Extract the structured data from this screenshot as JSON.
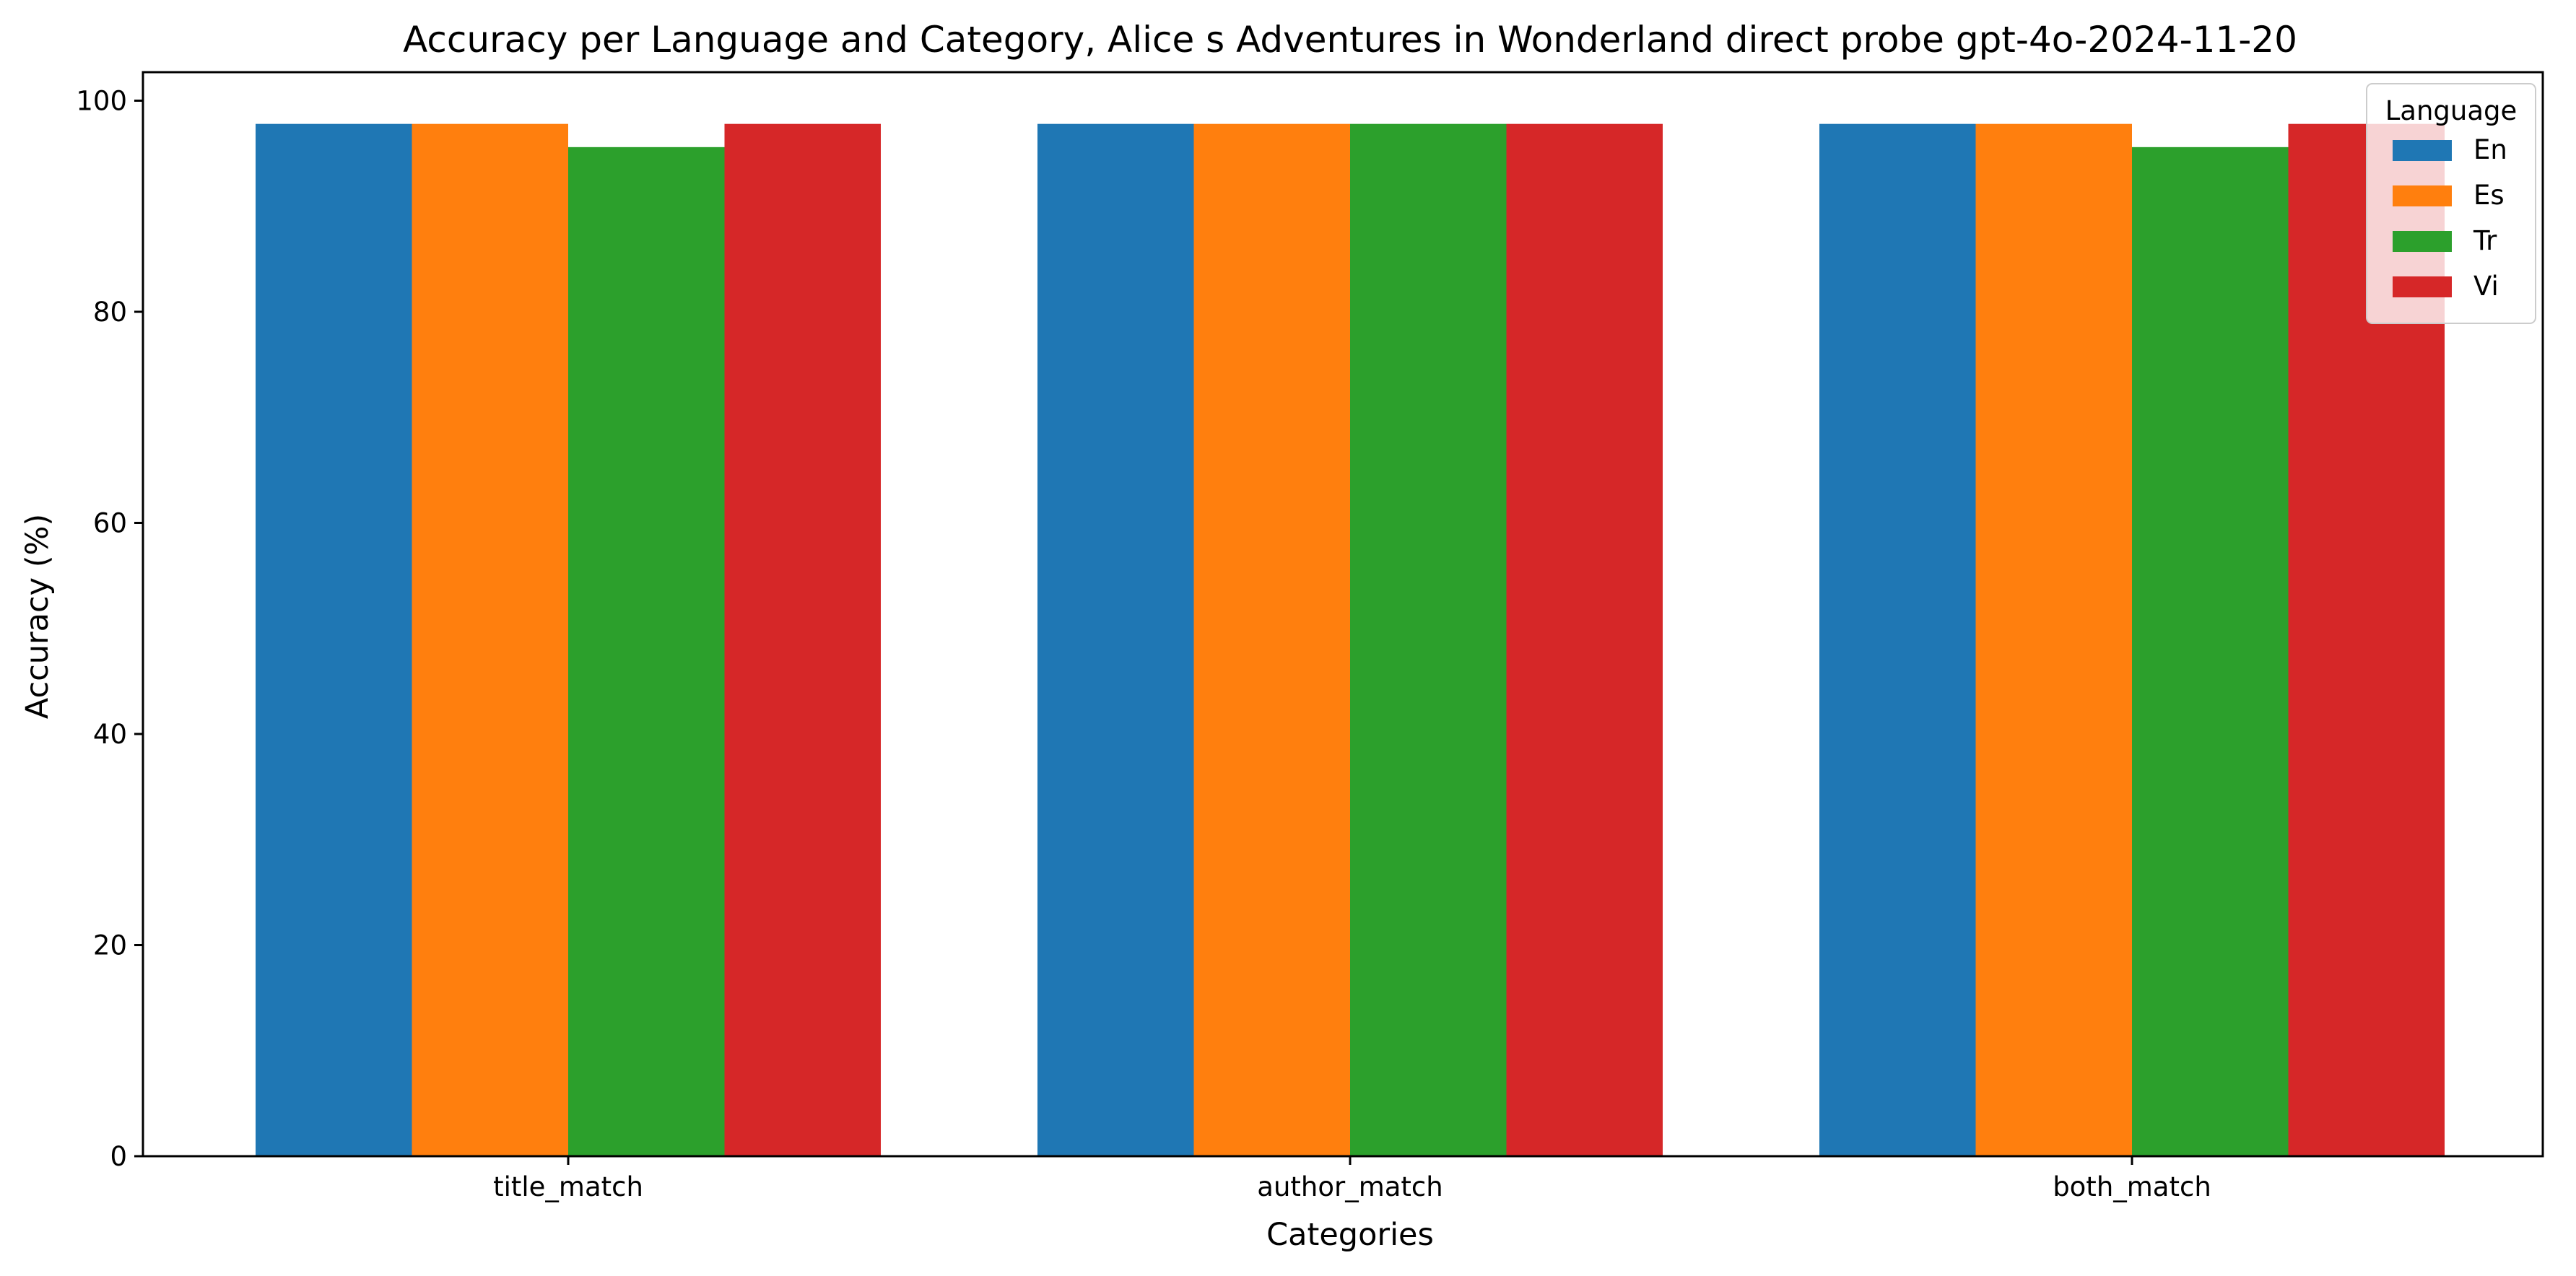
{
  "chart_data": {
    "type": "bar",
    "title": "Accuracy per Language and Category, Alice s Adventures in Wonderland direct probe gpt-4o-2024-11-20",
    "xlabel": "Categories",
    "ylabel": "Accuracy (%)",
    "categories": [
      "title_match",
      "author_match",
      "both_match"
    ],
    "series": [
      {
        "name": "En",
        "color": "#1f77b4",
        "values": [
          97.8,
          97.8,
          97.8
        ]
      },
      {
        "name": "Es",
        "color": "#ff7f0e",
        "values": [
          97.8,
          97.8,
          97.8
        ]
      },
      {
        "name": "Tr",
        "color": "#2ca02c",
        "values": [
          95.6,
          97.8,
          95.6
        ]
      },
      {
        "name": "Vi",
        "color": "#d62728",
        "values": [
          97.8,
          97.8,
          97.8
        ]
      }
    ],
    "ylim": [
      0,
      102.7
    ],
    "yticks": [
      0,
      20,
      40,
      60,
      80,
      100
    ],
    "grid": false,
    "legend": {
      "title": "Language",
      "position": "top-right"
    }
  }
}
